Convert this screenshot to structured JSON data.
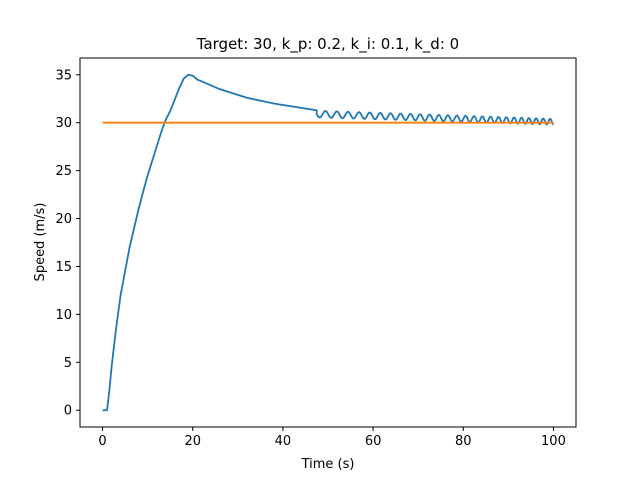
{
  "chart_data": {
    "type": "line",
    "title": "Target: 30, k_p: 0.2, k_i: 0.1, k_d: 0",
    "xlabel": "Time (s)",
    "ylabel": "Speed (m/s)",
    "xlim": [
      -5,
      105
    ],
    "ylim": [
      -1.75,
      36.75
    ],
    "xticks": [
      0,
      20,
      40,
      60,
      80,
      100
    ],
    "yticks": [
      0,
      5,
      10,
      15,
      20,
      25,
      30,
      35
    ],
    "grid": false,
    "series": [
      {
        "color": "#1f77b4",
        "x": [
          0,
          1,
          1.5,
          2,
          3,
          4,
          5,
          6,
          7,
          8,
          9,
          10,
          11,
          12,
          13,
          14,
          15,
          16,
          17,
          18,
          19,
          20,
          21,
          22,
          24,
          26,
          28,
          30,
          32,
          34,
          36,
          38,
          40,
          42,
          44,
          46,
          47.5
        ],
        "y": [
          0,
          0,
          2,
          4.5,
          8.5,
          12,
          14.5,
          17,
          19,
          21,
          22.8,
          24.5,
          26,
          27.5,
          29,
          30.3,
          31.2,
          32.4,
          33.6,
          34.6,
          35,
          34.9,
          34.5,
          34.3,
          33.9,
          33.5,
          33.2,
          32.9,
          32.6,
          32.4,
          32.2,
          32.0,
          31.85,
          31.7,
          31.55,
          31.4,
          31.3
        ],
        "oscillation": {
          "from": 47.5,
          "to": 100,
          "center_start": 30.9,
          "center_end": 30.1,
          "amp_start": 0.35,
          "amp_end": 0.3,
          "period_start": 2.6,
          "period_end": 1.5
        }
      },
      {
        "color": "#ff7f0e",
        "x": [
          0,
          100
        ],
        "y": [
          30,
          30
        ]
      }
    ]
  }
}
